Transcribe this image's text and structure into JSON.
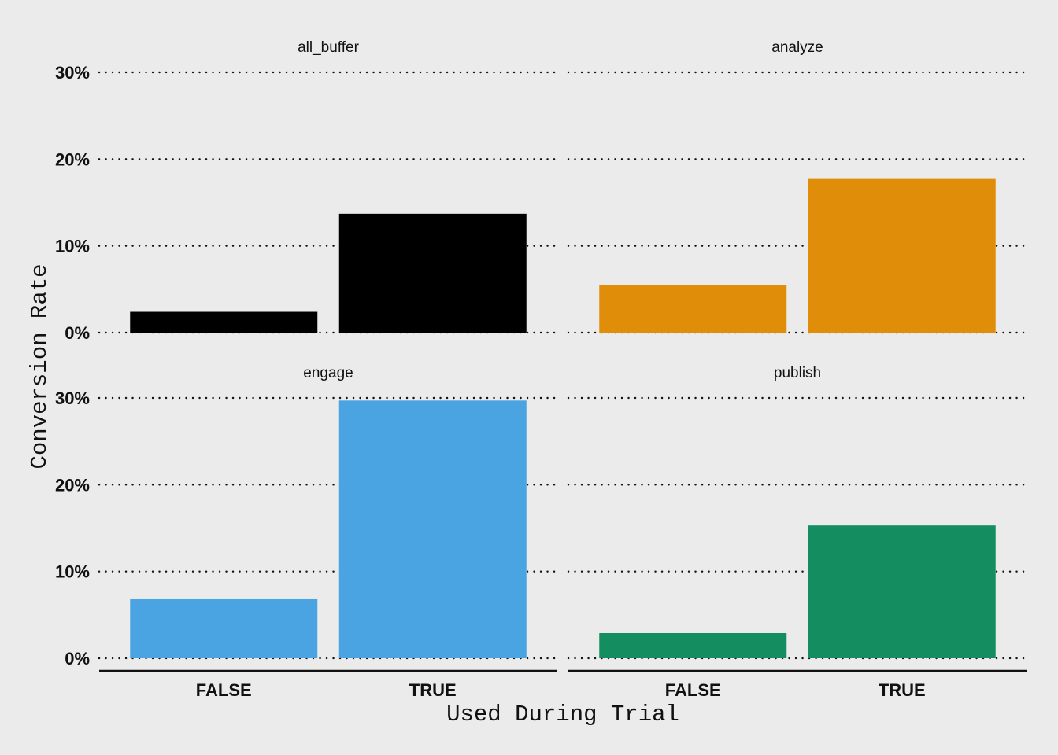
{
  "chart_data": {
    "type": "bar",
    "xlabel": "Used During Trial",
    "ylabel": "Conversion Rate",
    "categories": [
      "FALSE",
      "TRUE"
    ],
    "ylim": [
      0,
      30
    ],
    "y_ticks": [
      0,
      10,
      20,
      30
    ],
    "y_tick_labels": [
      "0%",
      "10%",
      "20%",
      "30%"
    ],
    "grid": true,
    "facets": [
      {
        "name": "all_buffer",
        "color": "#000000",
        "values": [
          2.4,
          13.7
        ]
      },
      {
        "name": "analyze",
        "color": "#E08E0A",
        "values": [
          5.5,
          17.8
        ]
      },
      {
        "name": "engage",
        "color": "#4AA4E2",
        "values": [
          6.8,
          29.7
        ]
      },
      {
        "name": "publish",
        "color": "#148E61",
        "values": [
          2.9,
          15.3
        ]
      }
    ]
  }
}
